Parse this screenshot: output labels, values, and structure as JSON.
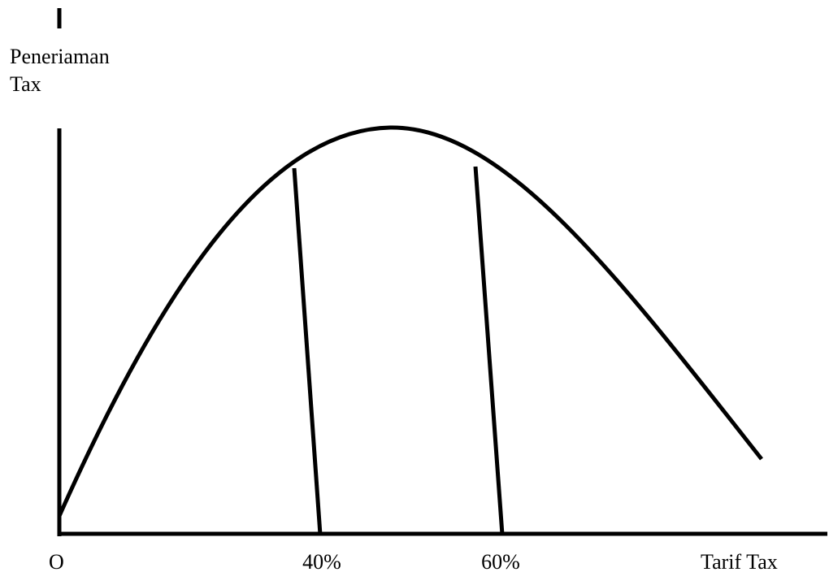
{
  "y_axis_label": [
    "Peneriaman",
    "Tax"
  ],
  "origin_label": "O",
  "x_labels": [
    "40%",
    "60%"
  ],
  "x_axis_label": "Tarif Tax"
}
